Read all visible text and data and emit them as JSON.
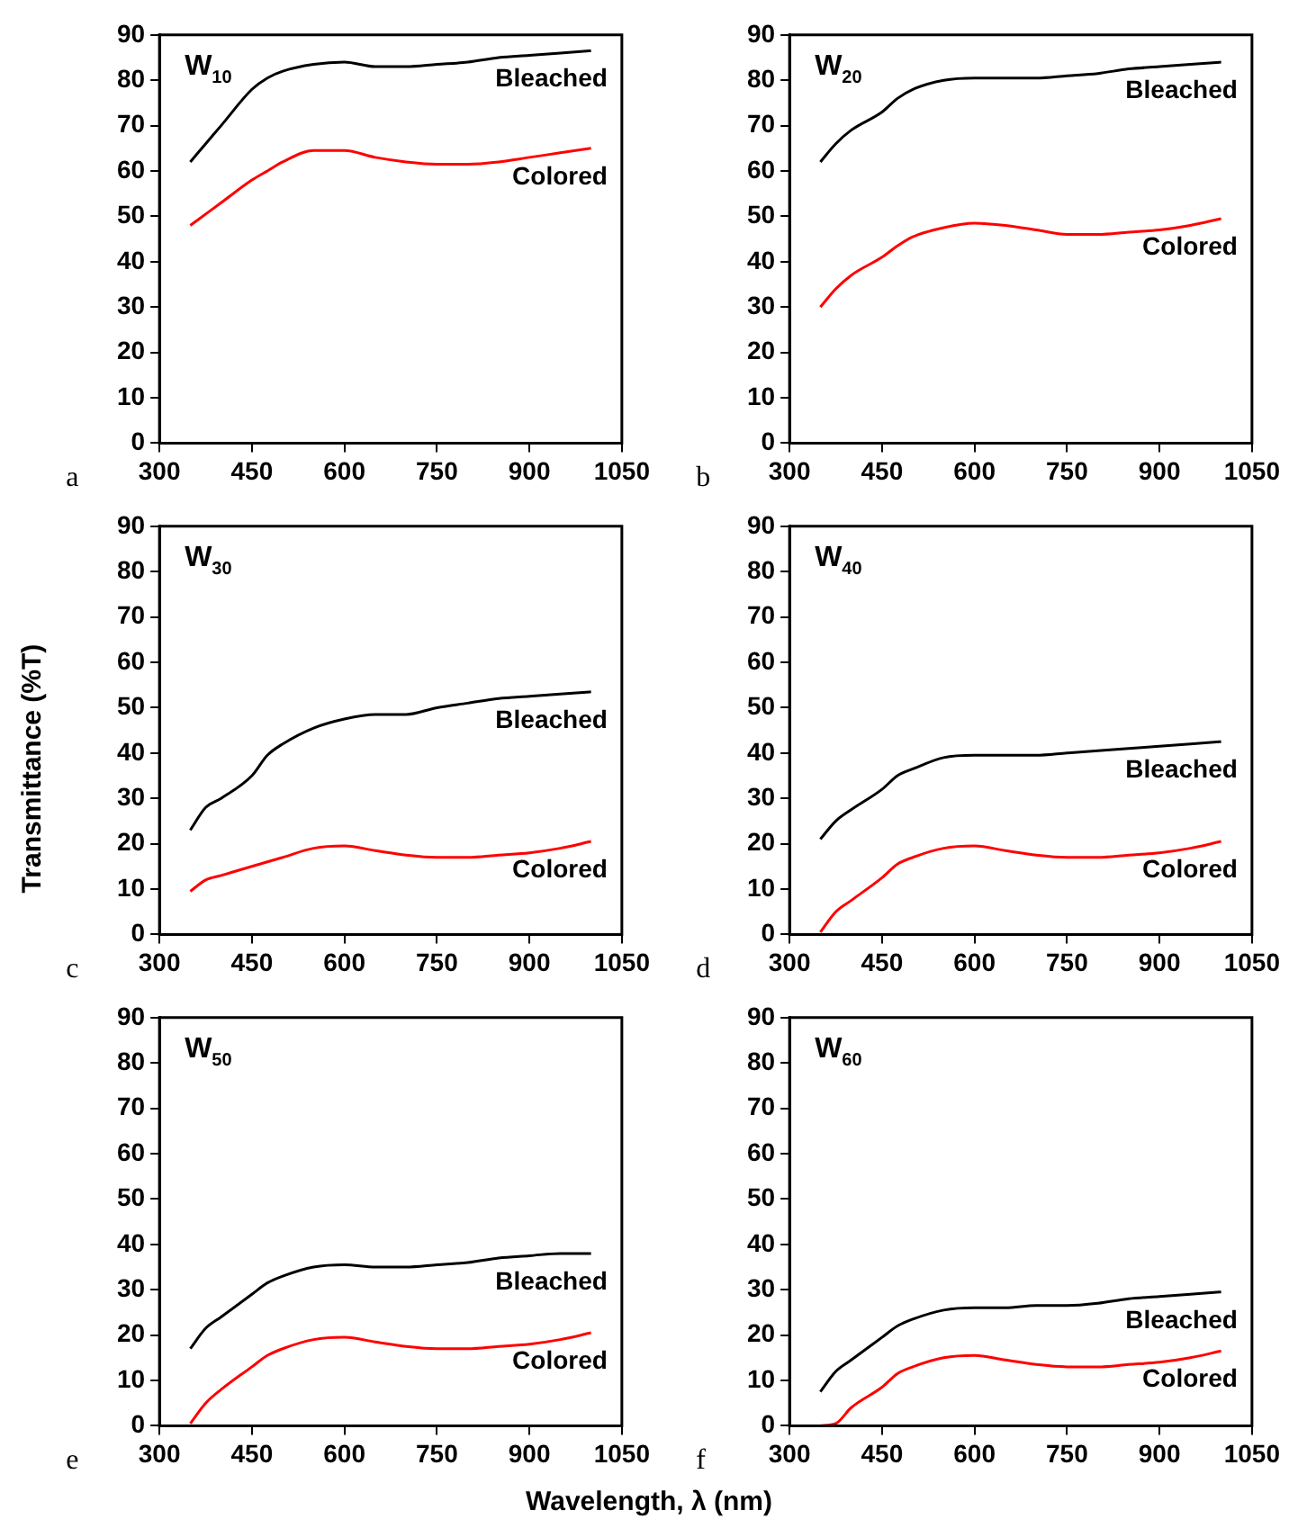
{
  "chart_data": [
    {
      "type": "line",
      "title": "W$_{10}$",
      "annotations": [
        "a"
      ],
      "marker": "none",
      "line_style": "solid",
      "xlim": [
        300,
        1050
      ],
      "xticks": [
        300,
        450,
        600,
        750,
        900,
        1050
      ],
      "ylim": [
        0,
        90
      ],
      "yticks": [
        0,
        10,
        20,
        30,
        40,
        50,
        60,
        70,
        80,
        90
      ],
      "x": [
        350,
        375,
        400,
        450,
        475,
        500,
        550,
        600,
        650,
        700,
        750,
        800,
        850,
        900,
        950,
        1000
      ],
      "series": [
        {
          "name": "Bleached",
          "color": "#000000",
          "values": [
            62,
            66,
            70,
            78,
            80.5,
            82,
            83.5,
            84,
            83,
            83,
            83.5,
            84,
            85,
            85.5,
            86,
            86.5
          ]
        },
        {
          "name": "Colored",
          "color": "#ff0000",
          "values": [
            48,
            50.5,
            53,
            58,
            60,
            62,
            64.5,
            64.5,
            63,
            62,
            61.5,
            61.5,
            62,
            63,
            64,
            65
          ]
        }
      ]
    },
    {
      "type": "line",
      "title": "W$_{20}$",
      "annotations": [
        "b"
      ],
      "marker": "none",
      "line_style": "solid",
      "xlim": [
        300,
        1050
      ],
      "xticks": [
        300,
        450,
        600,
        750,
        900,
        1050
      ],
      "ylim": [
        0,
        90
      ],
      "yticks": [
        0,
        10,
        20,
        30,
        40,
        50,
        60,
        70,
        80,
        90
      ],
      "x": [
        350,
        375,
        400,
        450,
        475,
        500,
        550,
        600,
        650,
        700,
        750,
        800,
        850,
        900,
        950,
        1000
      ],
      "series": [
        {
          "name": "Bleached",
          "color": "#000000",
          "values": [
            62,
            66,
            69,
            73,
            76,
            78,
            80,
            80.5,
            80.5,
            80.5,
            81,
            81.5,
            82.5,
            83,
            83.5,
            84
          ]
        },
        {
          "name": "Colored",
          "color": "#ff0000",
          "values": [
            30,
            34,
            37,
            41,
            43.5,
            45.5,
            47.5,
            48.5,
            48,
            47,
            46,
            46,
            46.5,
            47,
            48,
            49.5
          ]
        }
      ]
    },
    {
      "type": "line",
      "title": "W$_{30}$",
      "annotations": [
        "c"
      ],
      "ylabel": "Transmittance (%T)",
      "marker": "none",
      "line_style": "solid",
      "xlim": [
        300,
        1050
      ],
      "xticks": [
        300,
        450,
        600,
        750,
        900,
        1050
      ],
      "ylim": [
        0,
        90
      ],
      "yticks": [
        0,
        10,
        20,
        30,
        40,
        50,
        60,
        70,
        80,
        90
      ],
      "x": [
        350,
        375,
        400,
        450,
        475,
        500,
        550,
        600,
        650,
        700,
        750,
        800,
        850,
        900,
        950,
        1000
      ],
      "series": [
        {
          "name": "Bleached",
          "color": "#000000",
          "values": [
            23,
            28,
            30,
            35,
            39.5,
            42,
            45.5,
            47.5,
            48.5,
            48.5,
            50,
            51,
            52,
            52.5,
            53,
            53.5
          ]
        },
        {
          "name": "Colored",
          "color": "#ff0000",
          "values": [
            9.5,
            12,
            13,
            15,
            16,
            17,
            19,
            19.5,
            18.5,
            17.5,
            17,
            17,
            17.5,
            18,
            19,
            20.5
          ]
        }
      ]
    },
    {
      "type": "line",
      "title": "W$_{40}$",
      "annotations": [
        "d"
      ],
      "marker": "none",
      "line_style": "solid",
      "xlim": [
        300,
        1050
      ],
      "xticks": [
        300,
        450,
        600,
        750,
        900,
        1050
      ],
      "ylim": [
        0,
        90
      ],
      "yticks": [
        0,
        10,
        20,
        30,
        40,
        50,
        60,
        70,
        80,
        90
      ],
      "x": [
        350,
        375,
        400,
        450,
        475,
        500,
        550,
        600,
        650,
        700,
        750,
        800,
        850,
        900,
        950,
        1000
      ],
      "series": [
        {
          "name": "Bleached",
          "color": "#000000",
          "values": [
            21,
            25,
            27.5,
            32,
            35,
            36.5,
            39,
            39.5,
            39.5,
            39.5,
            40,
            40.5,
            41,
            41.5,
            42,
            42.5
          ]
        },
        {
          "name": "Colored",
          "color": "#ff0000",
          "values": [
            0.5,
            5,
            7.5,
            12.5,
            15.5,
            17,
            19,
            19.5,
            18.5,
            17.5,
            17,
            17,
            17.5,
            18,
            19,
            20.5
          ]
        }
      ]
    },
    {
      "type": "line",
      "title": "W$_{50}$",
      "annotations": [
        "e"
      ],
      "xlabel": "Wavelength, λ (nm)",
      "marker": "none",
      "line_style": "solid",
      "xlim": [
        300,
        1050
      ],
      "xticks": [
        300,
        450,
        600,
        750,
        900,
        1050
      ],
      "ylim": [
        0,
        90
      ],
      "yticks": [
        0,
        10,
        20,
        30,
        40,
        50,
        60,
        70,
        80,
        90
      ],
      "x": [
        350,
        375,
        400,
        450,
        475,
        500,
        550,
        600,
        650,
        700,
        750,
        800,
        850,
        900,
        950,
        1000
      ],
      "series": [
        {
          "name": "Bleached",
          "color": "#000000",
          "values": [
            17,
            21.5,
            24,
            29,
            31.5,
            33,
            35,
            35.5,
            35,
            35,
            35.5,
            36,
            37,
            37.5,
            38,
            38
          ]
        },
        {
          "name": "Colored",
          "color": "#ff0000",
          "values": [
            0.5,
            5,
            8,
            13,
            15.5,
            17,
            19,
            19.5,
            18.5,
            17.5,
            17,
            17,
            17.5,
            18,
            19,
            20.5
          ]
        }
      ]
    },
    {
      "type": "line",
      "title": "W$_{60}$",
      "annotations": [
        "f"
      ],
      "marker": "none",
      "line_style": "solid",
      "xlim": [
        300,
        1050
      ],
      "xticks": [
        300,
        450,
        600,
        750,
        900,
        1050
      ],
      "ylim": [
        0,
        90
      ],
      "yticks": [
        0,
        10,
        20,
        30,
        40,
        50,
        60,
        70,
        80,
        90
      ],
      "x": [
        350,
        375,
        400,
        450,
        475,
        500,
        550,
        600,
        650,
        700,
        750,
        800,
        850,
        900,
        950,
        1000
      ],
      "series": [
        {
          "name": "Bleached",
          "color": "#000000",
          "values": [
            7.5,
            12,
            14.5,
            19.5,
            22,
            23.5,
            25.5,
            26,
            26,
            26.5,
            26.5,
            27,
            28,
            28.5,
            29,
            29.5
          ]
        },
        {
          "name": "Colored",
          "color": "#ff0000",
          "values": [
            0,
            0.5,
            4,
            8.5,
            11.5,
            13,
            15,
            15.5,
            14.5,
            13.5,
            13,
            13,
            13.5,
            14,
            15,
            16.5
          ]
        }
      ]
    }
  ]
}
